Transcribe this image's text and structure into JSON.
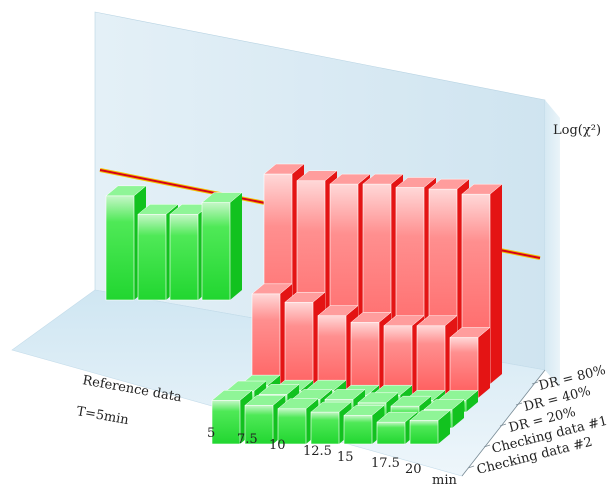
{
  "chart_data": {
    "type": "bar",
    "subtype": "3d-bar",
    "zlabel": "Log(χ²)",
    "threshold_line": {
      "color_main": "#d4001a",
      "color_edge": "#f2c200"
    },
    "time_axis": {
      "label": "T=5min",
      "unit": "min",
      "ticks": [
        "5",
        "7.5",
        "10",
        "12.5",
        "15",
        "17.5",
        "20"
      ]
    },
    "reference": {
      "label": "Reference data",
      "color": "#2ee63c",
      "values": [
        0.62,
        0.51,
        0.51,
        0.58
      ]
    },
    "rows": [
      {
        "name": "DR = 80%",
        "color": "#ff6b6b",
        "values": [
          1.25,
          1.21,
          1.19,
          1.19,
          1.17,
          1.16,
          1.13
        ]
      },
      {
        "name": "DR = 40%",
        "color": "#ff6b6b",
        "values": [
          0.62,
          0.57,
          0.49,
          0.45,
          0.43,
          0.43,
          0.36
        ]
      },
      {
        "name": "DR = 20%",
        "color": "#2ee63c",
        "values": [
          0.16,
          0.13,
          0.13,
          0.1,
          0.1,
          0.07,
          0.07
        ]
      },
      {
        "name": "Checking data #1",
        "color": "#2ee63c",
        "values": [
          0.22,
          0.2,
          0.17,
          0.17,
          0.15,
          0.13,
          0.11
        ]
      },
      {
        "name": "Checking data #2",
        "color": "#2ee63c",
        "values": [
          0.26,
          0.23,
          0.21,
          0.19,
          0.17,
          0.13,
          0.14
        ]
      }
    ]
  }
}
